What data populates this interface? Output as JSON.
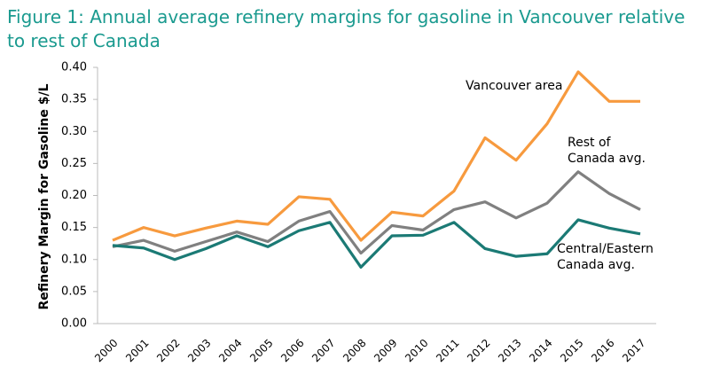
{
  "chart_data": {
    "type": "line",
    "title": "Figure 1: Annual average refinery margins for gasoline in Vancouver relative to rest of Canada",
    "y_label": "Refinery Margin for Gasoline $/L",
    "categories": [
      "2000",
      "2001",
      "2002",
      "2003",
      "2004",
      "2005",
      "2006",
      "2007",
      "2008",
      "2009",
      "2010",
      "2011",
      "2012",
      "2013",
      "2014",
      "2015",
      "2016",
      "2017"
    ],
    "series": [
      {
        "name": "Vancouver area",
        "color": "#f79a3e",
        "values": [
          0.13,
          0.15,
          0.137,
          0.149,
          0.16,
          0.155,
          0.198,
          0.194,
          0.13,
          0.174,
          0.168,
          0.207,
          0.29,
          0.255,
          0.312,
          0.393,
          0.347,
          0.347
        ]
      },
      {
        "name": "Rest of Canada avg.",
        "color": "#808080",
        "values": [
          0.12,
          0.13,
          0.113,
          0.128,
          0.143,
          0.128,
          0.16,
          0.175,
          0.11,
          0.153,
          0.146,
          0.178,
          0.19,
          0.165,
          0.188,
          0.237,
          0.203,
          0.178
        ]
      },
      {
        "name": "Central/Eastern Canada avg.",
        "color": "#1b7a75",
        "values": [
          0.122,
          0.118,
          0.1,
          0.117,
          0.137,
          0.12,
          0.145,
          0.158,
          0.088,
          0.137,
          0.138,
          0.158,
          0.117,
          0.105,
          0.109,
          0.162,
          0.149,
          0.14
        ]
      }
    ],
    "ylim": [
      0,
      0.4
    ],
    "yticks": [
      {
        "value": 0,
        "label": "0.00"
      },
      {
        "value": 0.05,
        "label": "0.05"
      },
      {
        "value": 0.1,
        "label": "0.10"
      },
      {
        "value": 0.15,
        "label": "0.15"
      },
      {
        "value": 0.2,
        "label": "0.20"
      },
      {
        "value": 0.25,
        "label": "0.25"
      },
      {
        "value": 0.3,
        "label": "0.30"
      },
      {
        "value": 0.35,
        "label": "0.35"
      },
      {
        "value": 0.4,
        "label": "0.40"
      }
    ],
    "grid": false
  }
}
